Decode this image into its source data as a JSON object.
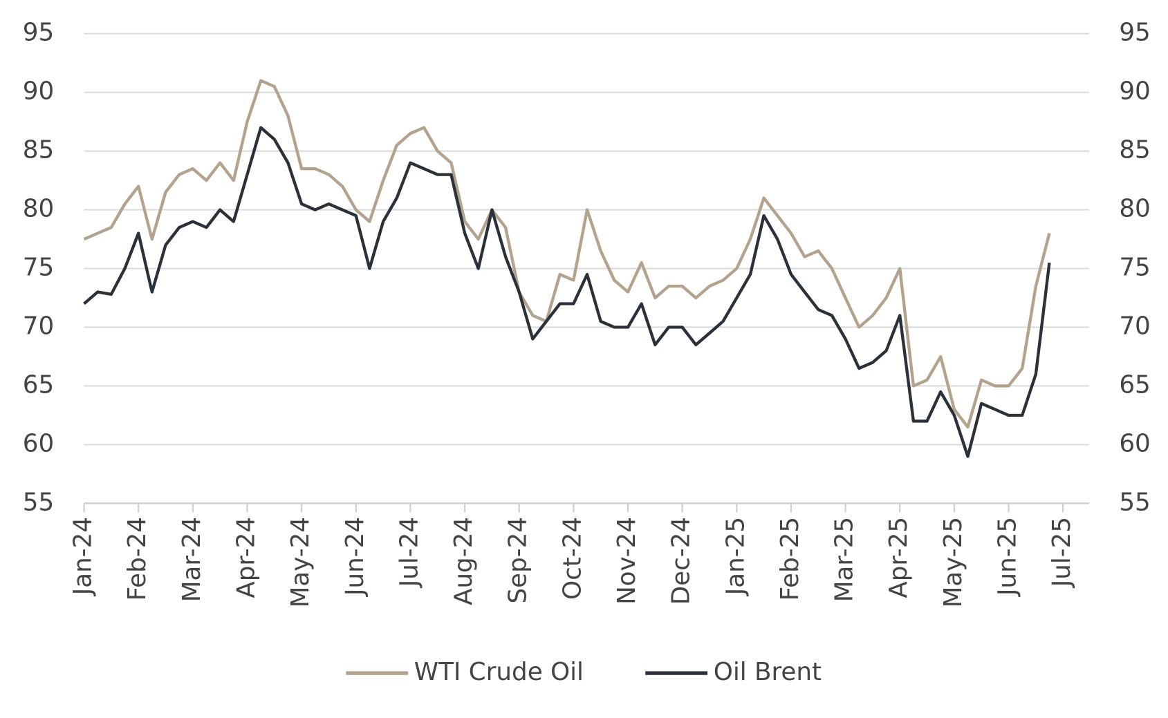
{
  "chart_data": {
    "type": "line",
    "categories": [
      "Jan-24",
      null,
      null,
      null,
      "Feb-24",
      null,
      null,
      null,
      "Mar-24",
      null,
      null,
      null,
      "Apr-24",
      null,
      null,
      null,
      "May-24",
      null,
      null,
      null,
      "Jun-24",
      null,
      null,
      null,
      "Jul-24",
      null,
      null,
      null,
      "Aug-24",
      null,
      null,
      null,
      "Sep-24",
      null,
      null,
      null,
      "Oct-24",
      null,
      null,
      null,
      "Nov-24",
      null,
      null,
      null,
      "Dec-24",
      null,
      null,
      null,
      "Jan-25",
      null,
      null,
      null,
      "Feb-25",
      null,
      null,
      null,
      "Mar-25",
      null,
      null,
      null,
      "Apr-25",
      null,
      null,
      null,
      "May-25",
      null,
      null,
      null,
      "Jun-25",
      null,
      null,
      null,
      "Jul-25"
    ],
    "series": [
      {
        "name": "WTI Crude Oil",
        "color": "#b3a38e",
        "values": [
          77.5,
          78,
          78.5,
          80.5,
          82,
          77.5,
          81.5,
          83,
          83.5,
          82.5,
          84,
          82.5,
          87.5,
          91,
          90.5,
          88,
          83.5,
          83.5,
          83,
          82,
          80,
          79,
          82.5,
          85.5,
          86.5,
          87,
          85,
          84,
          79,
          77.5,
          80,
          78.5,
          73,
          71,
          70.5,
          74.5,
          74,
          80,
          76.5,
          74,
          73,
          75.5,
          72.5,
          73.5,
          73.5,
          72.5,
          73.5,
          74,
          75,
          77.5,
          81,
          79.5,
          78,
          76,
          76.5,
          75,
          72.5,
          70,
          71,
          72.5,
          75,
          65,
          65.5,
          67.5,
          63,
          61.5,
          65.5,
          65,
          65,
          66.5,
          73.5,
          78,
          null
        ]
      },
      {
        "name": "Oil Brent",
        "color": "#2b3138",
        "values": [
          72,
          73,
          72.8,
          75,
          78,
          73,
          77,
          78.5,
          79,
          78.5,
          80,
          79,
          83,
          87,
          86,
          84,
          80.5,
          80,
          80.5,
          80,
          79.5,
          75,
          79,
          81,
          84,
          83.5,
          83,
          83,
          78,
          75,
          80,
          76,
          73,
          69,
          70.5,
          72,
          72,
          74.5,
          70.5,
          70,
          70,
          72,
          68.5,
          70,
          70,
          68.5,
          69.5,
          70.5,
          72.5,
          74.5,
          79.5,
          77.5,
          74.5,
          73,
          71.5,
          71,
          69,
          66.5,
          67,
          68,
          71,
          62,
          62,
          64.5,
          62.5,
          59,
          63.5,
          63,
          62.5,
          62.5,
          66,
          75.5,
          null
        ]
      }
    ],
    "ylim": [
      55,
      95
    ],
    "yticks": [
      55,
      60,
      65,
      70,
      75,
      80,
      85,
      90,
      95
    ],
    "y2lim": [
      55,
      95
    ],
    "y2ticks": [
      55,
      60,
      65,
      70,
      75,
      80,
      85,
      90,
      95
    ],
    "grid": true,
    "legend": "bottom"
  }
}
